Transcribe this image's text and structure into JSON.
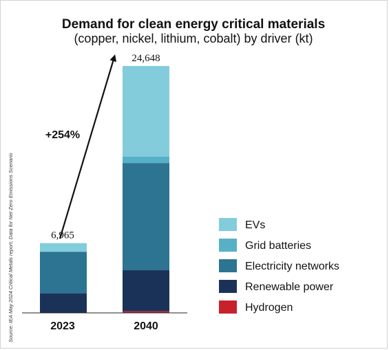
{
  "chart_data": {
    "type": "bar",
    "stacked": true,
    "title": "Demand for clean energy critical materials",
    "subtitle": "(copper, nickel, lithium, cobalt) by driver (kt)",
    "categories": [
      "2023",
      "2040"
    ],
    "totals_labels": [
      "6,965",
      "24,648"
    ],
    "totals": [
      6965,
      24648
    ],
    "series": [
      {
        "name": "Hydrogen",
        "color": "#c8212b",
        "values": [
          0,
          160
        ]
      },
      {
        "name": "Renewable power",
        "color": "#1b3258",
        "values": [
          1950,
          4100
        ]
      },
      {
        "name": "Electricity networks",
        "color": "#2d7392",
        "values": [
          4150,
          10700
        ]
      },
      {
        "name": "Grid batteries",
        "color": "#56b0c7",
        "values": [
          0,
          650
        ]
      },
      {
        "name": "EVs",
        "color": "#82ccdc",
        "values": [
          865,
          9038
        ]
      }
    ],
    "legend_labels": [
      "EVs",
      "Grid batteries",
      "Electricity networks",
      "Renewable power",
      "Hydrogen"
    ],
    "legend_colors": [
      "#82ccdc",
      "#56b0c7",
      "#2d7392",
      "#1b3258",
      "#c8212b"
    ],
    "annotation": "+254%",
    "ylim": [
      0,
      24648
    ],
    "grid": false,
    "legend_position": "right"
  },
  "source_note": "Source: IEA May 2024 Critical Metals report; Data for Net Zero Emissions Scenario"
}
